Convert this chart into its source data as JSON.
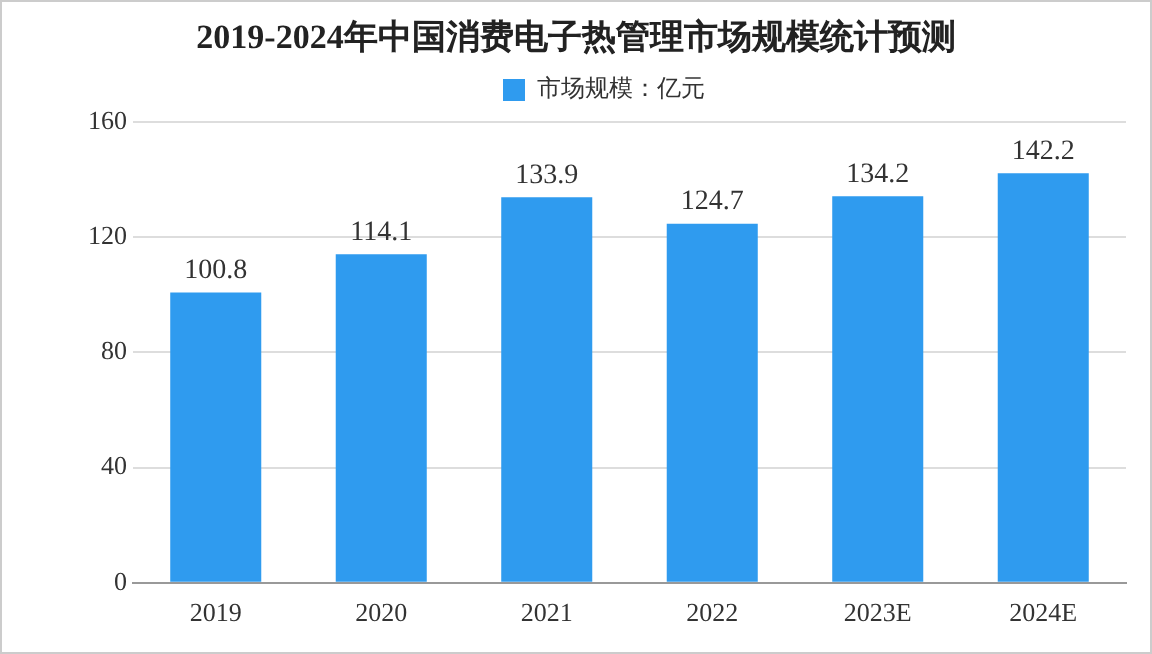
{
  "chart_data": {
    "type": "bar",
    "title": "2019-2024年中国消费电子热管理市场规模统计预测",
    "categories": [
      "2019",
      "2020",
      "2021",
      "2022",
      "2023E",
      "2024E"
    ],
    "series": [
      {
        "name": "市场规模：亿元",
        "color": "#2f9bef",
        "values": [
          100.8,
          114.1,
          133.9,
          124.7,
          134.2,
          142.2
        ]
      }
    ],
    "ylim": [
      0,
      160
    ],
    "yticks": [
      0,
      40,
      80,
      120,
      160
    ],
    "grid": "y",
    "legend": "top",
    "data_labels": true
  }
}
